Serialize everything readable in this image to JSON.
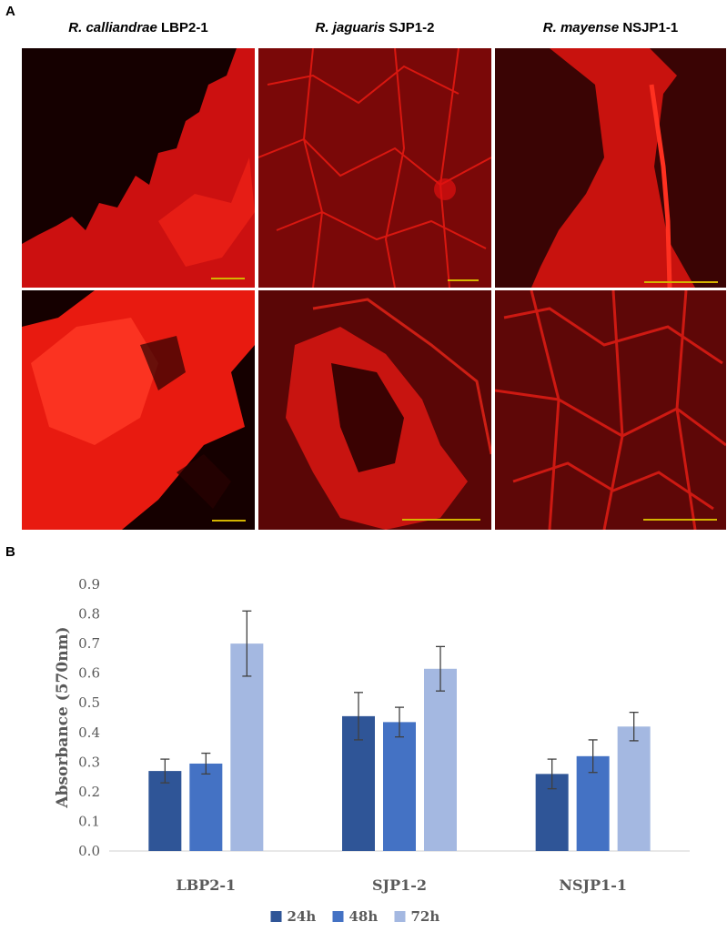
{
  "panel_a_label": "A",
  "panel_b_label": "B",
  "columns": [
    {
      "species": "R. calliandrae",
      "strain": "LBP2-1"
    },
    {
      "species": "R. jaguaris",
      "strain": "SJP1-2"
    },
    {
      "species": "R. mayense",
      "strain": "NSJP1-1"
    }
  ],
  "micro_colors": {
    "background": "#150000",
    "stain": "#e01010",
    "scale_bar": "#d4b400"
  },
  "chart_data": {
    "type": "bar",
    "categories": [
      "LBP2-1",
      "SJP1-2",
      "NSJP1-1"
    ],
    "series": [
      {
        "name": "24h",
        "color": "#2f5597",
        "values": [
          0.27,
          0.455,
          0.26
        ],
        "errors": [
          0.04,
          0.08,
          0.05
        ]
      },
      {
        "name": "48h",
        "color": "#4472c4",
        "values": [
          0.295,
          0.435,
          0.32
        ],
        "errors": [
          0.035,
          0.05,
          0.055
        ]
      },
      {
        "name": "72h",
        "color": "#a4b8e1",
        "values": [
          0.7,
          0.615,
          0.42
        ],
        "errors": [
          0.11,
          0.075,
          0.048
        ]
      }
    ],
    "ylabel": "Absorbance (570nm)",
    "xlabel": "",
    "ylim": [
      0,
      0.9
    ],
    "yticks": [
      "0.0",
      "0.1",
      "0.2",
      "0.3",
      "0.4",
      "0.5",
      "0.6",
      "0.7",
      "0.8",
      "0.9"
    ],
    "grid": false,
    "legend": "bottom-center"
  }
}
